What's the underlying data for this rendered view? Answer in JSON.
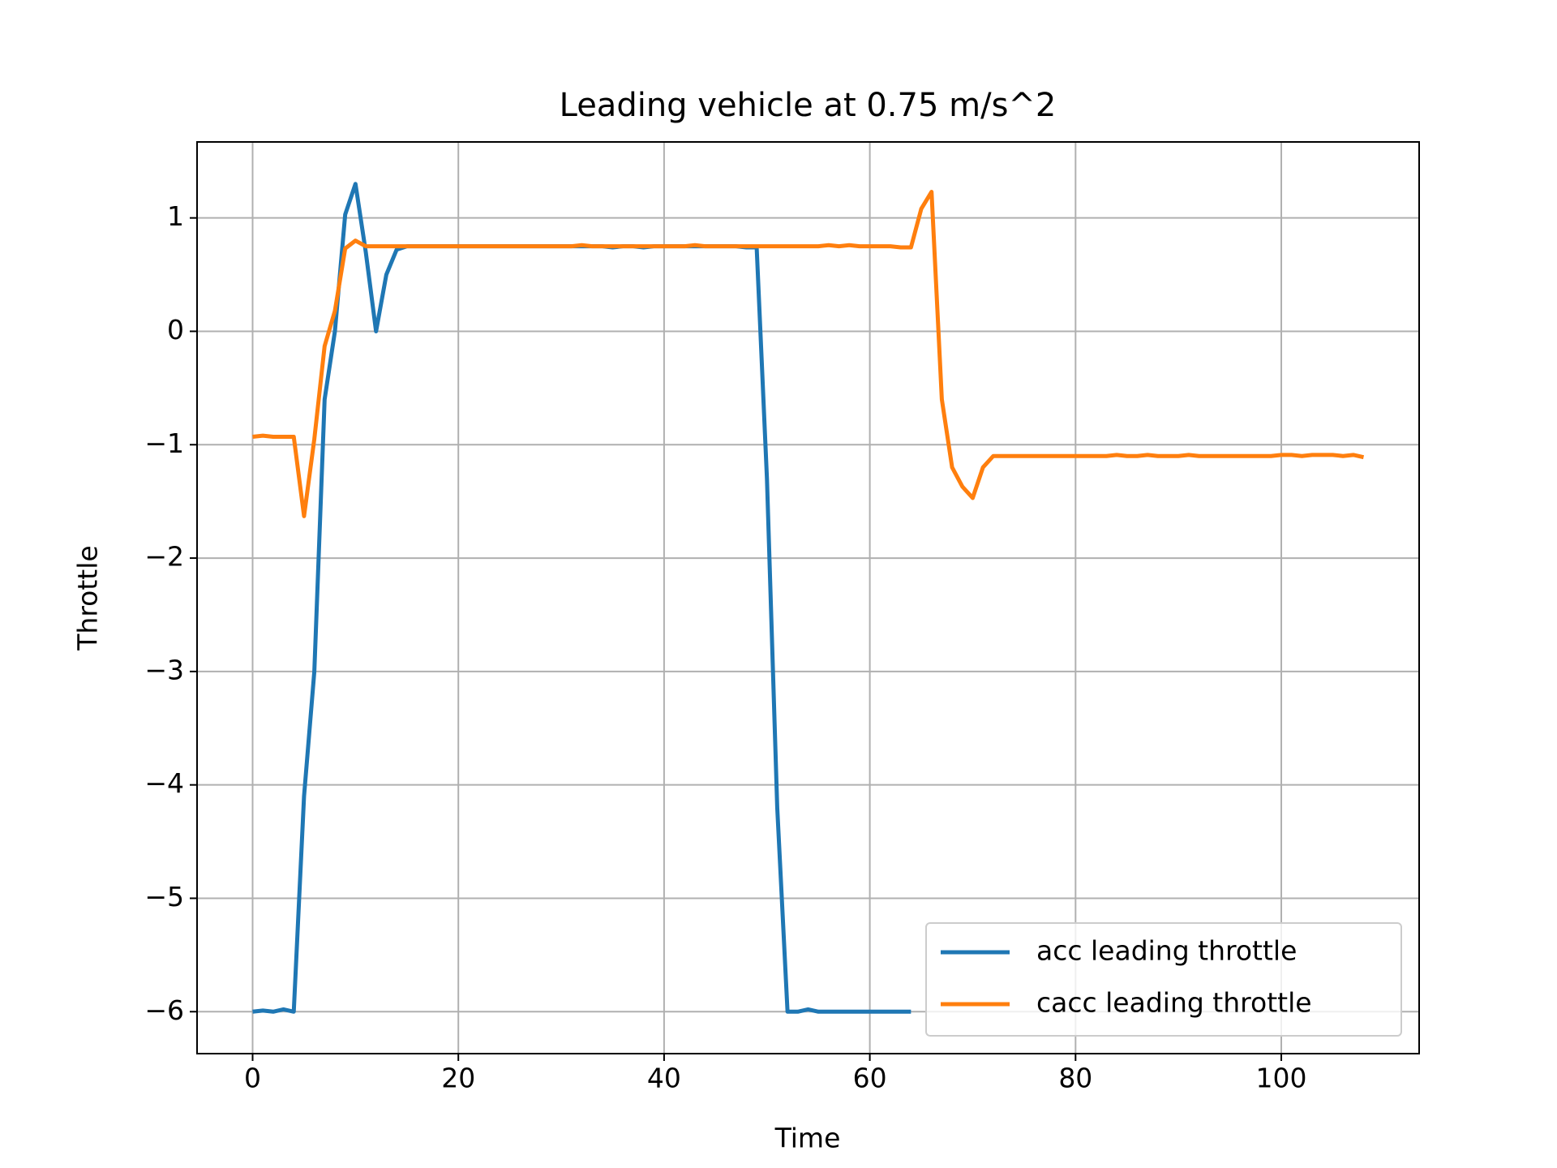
{
  "chart_data": {
    "type": "line",
    "title": "Leading vehicle at 0.75 m/s^2",
    "x_label": "Time",
    "y_label": "Throttle",
    "x": [
      0,
      1,
      2,
      3,
      4,
      5,
      6,
      7,
      8,
      9,
      10,
      11,
      12,
      13,
      14,
      15,
      16,
      17,
      18,
      19,
      20,
      21,
      22,
      23,
      24,
      25,
      26,
      27,
      28,
      29,
      30,
      31,
      32,
      33,
      34,
      35,
      36,
      37,
      38,
      39,
      40,
      41,
      42,
      43,
      44,
      45,
      46,
      47,
      48,
      49,
      50,
      51,
      52,
      53,
      54,
      55,
      56,
      57,
      58,
      59,
      60,
      61,
      62,
      63,
      64,
      65,
      66,
      67,
      68,
      69,
      70,
      71,
      72,
      73,
      74,
      75,
      76,
      77,
      78,
      79,
      80,
      81,
      82,
      83,
      84,
      85,
      86,
      87,
      88,
      89,
      90,
      91,
      92,
      93,
      94,
      95,
      96,
      97,
      98,
      99,
      100,
      101,
      102,
      103,
      104,
      105,
      106,
      107,
      108
    ],
    "series": [
      {
        "name": "acc leading throttle",
        "color": "#1f77b4",
        "values": [
          -6,
          -5.99,
          -6,
          -5.98,
          -6,
          -4.1,
          -3,
          -0.6,
          0,
          1.03,
          1.3,
          0.7,
          0,
          0.5,
          0.72,
          0.75,
          0.75,
          0.75,
          0.75,
          0.75,
          0.75,
          0.75,
          0.75,
          0.75,
          0.75,
          0.75,
          0.75,
          0.75,
          0.75,
          0.75,
          0.75,
          0.75,
          0.75,
          0.75,
          0.75,
          0.74,
          0.75,
          0.75,
          0.74,
          0.75,
          0.75,
          0.75,
          0.75,
          0.75,
          0.75,
          0.75,
          0.75,
          0.75,
          0.74,
          0.74,
          -1.3,
          -4.2,
          -6,
          -6,
          -5.98,
          -6,
          -6,
          -6,
          -6,
          -6,
          -6,
          -6,
          -6,
          -6,
          -6,
          null,
          null,
          null,
          null,
          null,
          null,
          null,
          null,
          null,
          null,
          null,
          null,
          null,
          null,
          null,
          null,
          null,
          null,
          null,
          null,
          null,
          null,
          null,
          null,
          null,
          null,
          null,
          null,
          null,
          null,
          null,
          null,
          null,
          null,
          null,
          null,
          null,
          null,
          null,
          null,
          null,
          null,
          null,
          null
        ]
      },
      {
        "name": "cacc leading throttle",
        "color": "#ff7f0e",
        "values": [
          -0.93,
          -0.92,
          -0.93,
          -0.93,
          -0.93,
          -1.63,
          -0.95,
          -0.13,
          0.18,
          0.73,
          0.8,
          0.75,
          0.75,
          0.75,
          0.75,
          0.75,
          0.75,
          0.75,
          0.75,
          0.75,
          0.75,
          0.75,
          0.75,
          0.75,
          0.75,
          0.75,
          0.75,
          0.75,
          0.75,
          0.75,
          0.75,
          0.75,
          0.76,
          0.75,
          0.75,
          0.75,
          0.75,
          0.75,
          0.75,
          0.75,
          0.75,
          0.75,
          0.75,
          0.76,
          0.75,
          0.75,
          0.75,
          0.75,
          0.75,
          0.75,
          0.75,
          0.75,
          0.75,
          0.75,
          0.75,
          0.75,
          0.76,
          0.75,
          0.76,
          0.75,
          0.75,
          0.75,
          0.75,
          0.74,
          0.74,
          1.08,
          1.23,
          -0.6,
          -1.2,
          -1.37,
          -1.47,
          -1.2,
          -1.1,
          -1.1,
          -1.1,
          -1.1,
          -1.1,
          -1.1,
          -1.1,
          -1.1,
          -1.1,
          -1.1,
          -1.1,
          -1.1,
          -1.09,
          -1.1,
          -1.1,
          -1.09,
          -1.1,
          -1.1,
          -1.1,
          -1.09,
          -1.1,
          -1.1,
          -1.1,
          -1.1,
          -1.1,
          -1.1,
          -1.1,
          -1.1,
          -1.09,
          -1.09,
          -1.1,
          -1.09,
          -1.09,
          -1.09,
          -1.1,
          -1.09,
          -1.11
        ]
      }
    ],
    "xlim": [
      -5.4,
      113.4
    ],
    "ylim": [
      -6.37,
      1.67
    ],
    "xticks": [
      0,
      20,
      40,
      60,
      80,
      100
    ],
    "yticks": [
      {
        "value": -6,
        "label": "−6"
      },
      {
        "value": -5,
        "label": "−5"
      },
      {
        "value": -4,
        "label": "−4"
      },
      {
        "value": -3,
        "label": "−3"
      },
      {
        "value": -2,
        "label": "−2"
      },
      {
        "value": -1,
        "label": "−1"
      },
      0,
      1
    ],
    "grid": true,
    "legend": "lower right"
  }
}
